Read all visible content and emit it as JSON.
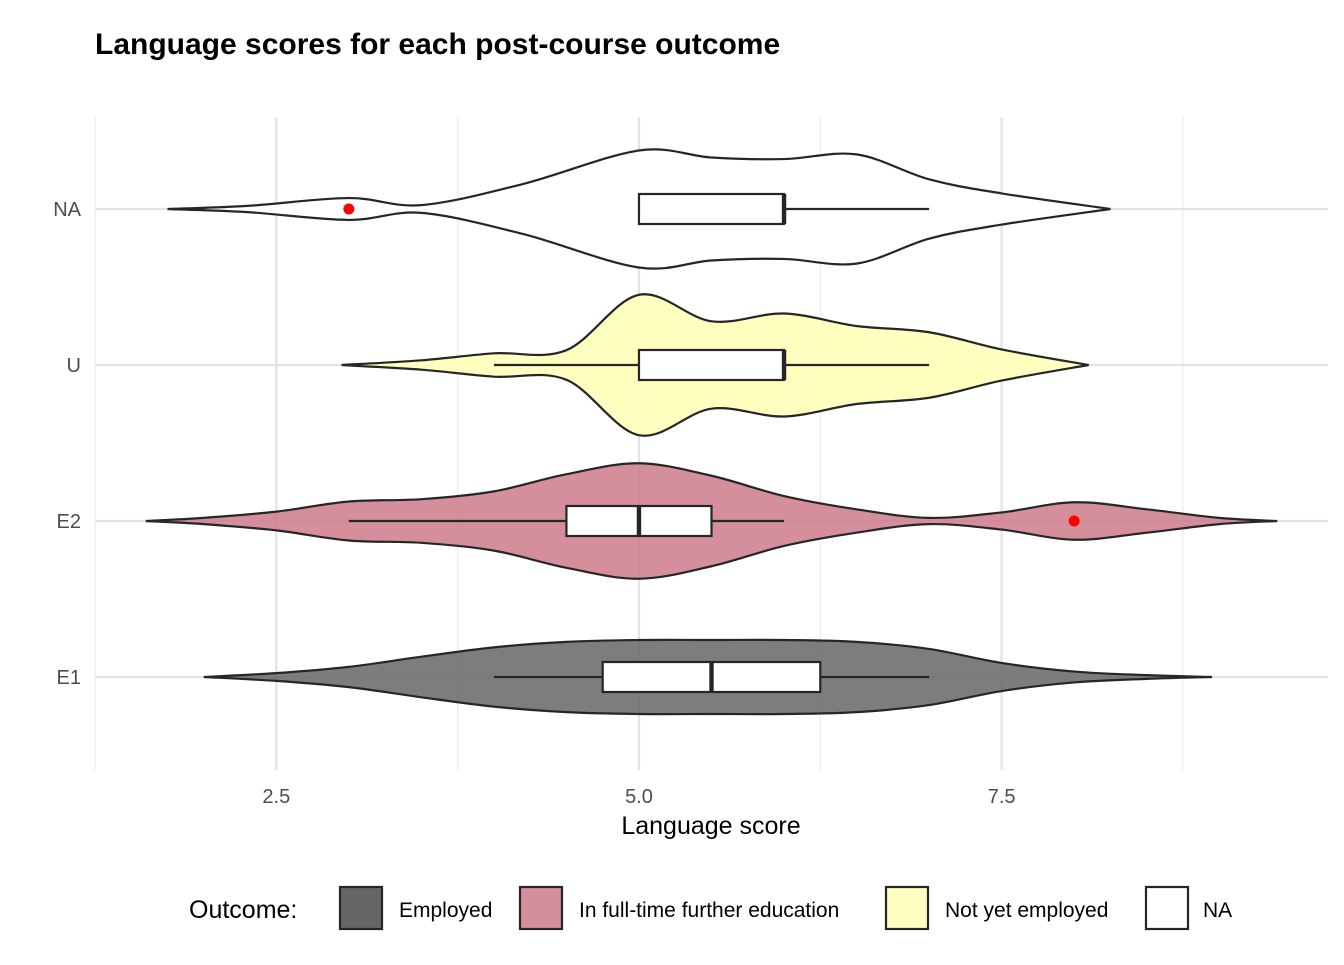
{
  "chart_data": {
    "type": "violin",
    "title": "Language scores for each post-course outcome",
    "xlabel": "Language score",
    "ylabel": "",
    "xlim": [
      1.25,
      9.75
    ],
    "x_ticks": [
      2.5,
      5.0,
      7.5
    ],
    "x_tick_labels": [
      "2.5",
      "5.0",
      "7.5"
    ],
    "x_minor_ticks": [
      3.75,
      6.25,
      8.75
    ],
    "categories": [
      "E1",
      "E2",
      "U",
      "NA"
    ],
    "grid": true,
    "legend": {
      "title": "Outcome:",
      "position": "bottom",
      "entries": [
        {
          "label": "Employed",
          "color": "#666666"
        },
        {
          "label": "In full-time further education",
          "color": "#CC7A8B"
        },
        {
          "label": "Not yet employed",
          "color": "#FFFFC0"
        },
        {
          "label": "NA",
          "color": "#FFFFFF"
        }
      ]
    },
    "outlier_color": "#FF0000",
    "series": [
      {
        "category": "E1",
        "legend": "Employed",
        "color": "#666666",
        "density_x": [
          2.0,
          2.5,
          3.0,
          3.5,
          4.0,
          4.5,
          5.0,
          5.5,
          6.0,
          6.5,
          7.0,
          7.5,
          8.0,
          8.5,
          8.95
        ],
        "density_halfwidth": [
          0,
          0.025,
          0.065,
          0.13,
          0.19,
          0.225,
          0.237,
          0.237,
          0.237,
          0.225,
          0.18,
          0.09,
          0.035,
          0.012,
          0
        ],
        "box": {
          "lower_whisker": 4.0,
          "q1": 4.75,
          "median": 5.5,
          "q3": 6.25,
          "upper_whisker": 7.0
        },
        "outliers": []
      },
      {
        "category": "E2",
        "legend": "In full-time further education",
        "color": "#CC7A8B",
        "density_x": [
          1.6,
          2.0,
          2.5,
          3.0,
          3.5,
          4.0,
          4.5,
          5.0,
          5.5,
          6.0,
          6.5,
          7.0,
          7.5,
          8.0,
          8.5,
          9.0,
          9.4
        ],
        "density_halfwidth": [
          0,
          0.02,
          0.06,
          0.125,
          0.14,
          0.19,
          0.3,
          0.37,
          0.29,
          0.16,
          0.075,
          0.02,
          0.055,
          0.12,
          0.075,
          0.02,
          0
        ],
        "box": {
          "lower_whisker": 3.0,
          "q1": 4.5,
          "median": 5.0,
          "q3": 5.5,
          "upper_whisker": 6.0
        },
        "outliers": [
          8.0
        ]
      },
      {
        "category": "U",
        "legend": "Not yet employed",
        "color": "#FFFFC0",
        "density_x": [
          2.95,
          3.5,
          4.0,
          4.5,
          5.0,
          5.5,
          6.0,
          6.5,
          7.0,
          7.5,
          8.1
        ],
        "density_halfwidth": [
          0,
          0.03,
          0.075,
          0.095,
          0.45,
          0.28,
          0.33,
          0.25,
          0.21,
          0.1,
          0
        ],
        "box": {
          "lower_whisker": 4.0,
          "q1": 5.0,
          "median": 6.0,
          "q3": 6.0,
          "upper_whisker": 7.0
        },
        "outliers": []
      },
      {
        "category": "NA",
        "legend": "NA",
        "color": "#FFFFFF",
        "density_x": [
          1.75,
          2.3,
          3.0,
          3.5,
          4.2,
          5.0,
          5.5,
          6.0,
          6.5,
          7.0,
          7.5,
          8.25
        ],
        "density_halfwidth": [
          0,
          0.02,
          0.07,
          0.025,
          0.16,
          0.375,
          0.33,
          0.32,
          0.35,
          0.19,
          0.1,
          0
        ],
        "box": {
          "lower_whisker": 5.0,
          "q1": 5.0,
          "median": 6.0,
          "q3": 6.0,
          "upper_whisker": 7.0
        },
        "outliers": [
          3.0
        ]
      }
    ]
  }
}
